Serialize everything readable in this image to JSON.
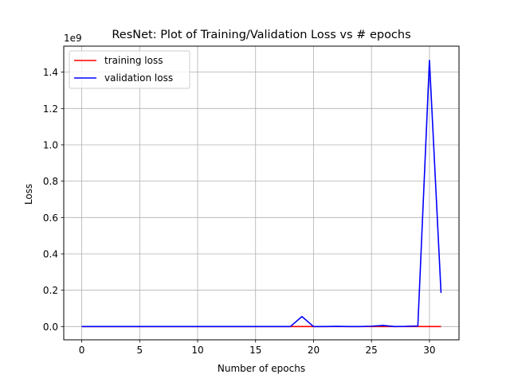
{
  "chart_data": {
    "type": "line",
    "title": "ResNet: Plot of Training/Validation Loss vs # epochs",
    "xlabel": "Number of epochs",
    "ylabel": "Loss",
    "y_multiplier_label": "1e9",
    "xlim": [
      -1.55,
      32.55
    ],
    "ylim": [
      -0.073,
      1.543
    ],
    "xticks": [
      0,
      5,
      10,
      15,
      20,
      25,
      30
    ],
    "yticks": [
      0.0,
      0.2,
      0.4,
      0.6,
      0.8,
      1.0,
      1.2,
      1.4
    ],
    "ytick_labels": [
      "0.0",
      "0.2",
      "0.4",
      "0.6",
      "0.8",
      "1.0",
      "1.2",
      "1.4"
    ],
    "grid": true,
    "legend_position": "upper-left",
    "x": [
      0,
      1,
      2,
      3,
      4,
      5,
      6,
      7,
      8,
      9,
      10,
      11,
      12,
      13,
      14,
      15,
      16,
      17,
      18,
      19,
      20,
      21,
      22,
      23,
      24,
      25,
      26,
      27,
      28,
      29,
      30,
      31
    ],
    "series": [
      {
        "name": "training loss",
        "color": "#ff0000",
        "values": [
          0,
          0,
          0,
          0,
          0,
          0,
          0,
          0,
          0,
          0,
          0,
          0,
          0,
          0,
          0,
          0,
          0,
          0,
          0,
          0,
          0,
          0,
          0,
          0,
          0,
          0,
          0,
          0,
          0,
          0,
          0,
          0
        ]
      },
      {
        "name": "validation loss",
        "color": "#0000ff",
        "values": [
          0,
          0,
          0,
          0,
          0,
          0,
          0,
          0,
          0,
          0,
          0,
          0,
          0,
          0,
          0,
          0,
          0,
          0,
          0,
          0.055,
          0,
          0,
          0.001,
          0,
          0,
          0.002,
          0.006,
          0,
          0.001,
          0.003,
          1.465,
          0.185
        ]
      }
    ]
  }
}
